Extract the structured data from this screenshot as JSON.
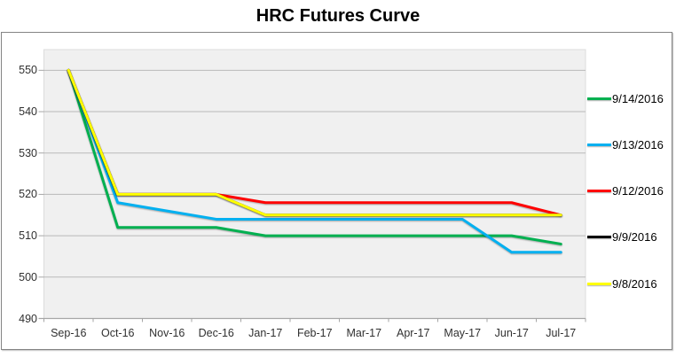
{
  "title": "HRC Futures Curve",
  "chart_data": {
    "type": "line",
    "title": "HRC Futures Curve",
    "categories": [
      "Sep-16",
      "Oct-16",
      "Nov-16",
      "Dec-16",
      "Jan-17",
      "Feb-17",
      "Mar-17",
      "Apr-17",
      "May-17",
      "Jun-17",
      "Jul-17"
    ],
    "series": [
      {
        "name": "9/14/2016",
        "color": "#00B050",
        "values": [
          550,
          512,
          512,
          512,
          510,
          510,
          510,
          510,
          510,
          510,
          508
        ]
      },
      {
        "name": "9/13/2016",
        "color": "#00B0F0",
        "values": [
          550,
          518,
          516,
          514,
          514,
          514,
          514,
          514,
          514,
          506,
          506
        ]
      },
      {
        "name": "9/12/2016",
        "color": "#FF0000",
        "values": [
          550,
          520,
          520,
          520,
          518,
          518,
          518,
          518,
          518,
          518,
          515
        ]
      },
      {
        "name": "9/9/2016",
        "color": "#000000",
        "values": [
          550,
          520,
          520,
          520,
          515,
          515,
          515,
          515,
          515,
          515,
          515
        ]
      },
      {
        "name": "9/8/2016",
        "color": "#FFFF00",
        "values": [
          550,
          520,
          520,
          520,
          515,
          515,
          515,
          515,
          515,
          515,
          515
        ]
      }
    ],
    "y_ticks": [
      490,
      500,
      510,
      520,
      530,
      540,
      550
    ],
    "ylim": [
      490,
      555
    ],
    "grid": true,
    "legend_position": "right",
    "plot_bg": "#F0F0F0",
    "grid_color": "#B9B9B9",
    "axis_color": "#A6A6A6"
  }
}
